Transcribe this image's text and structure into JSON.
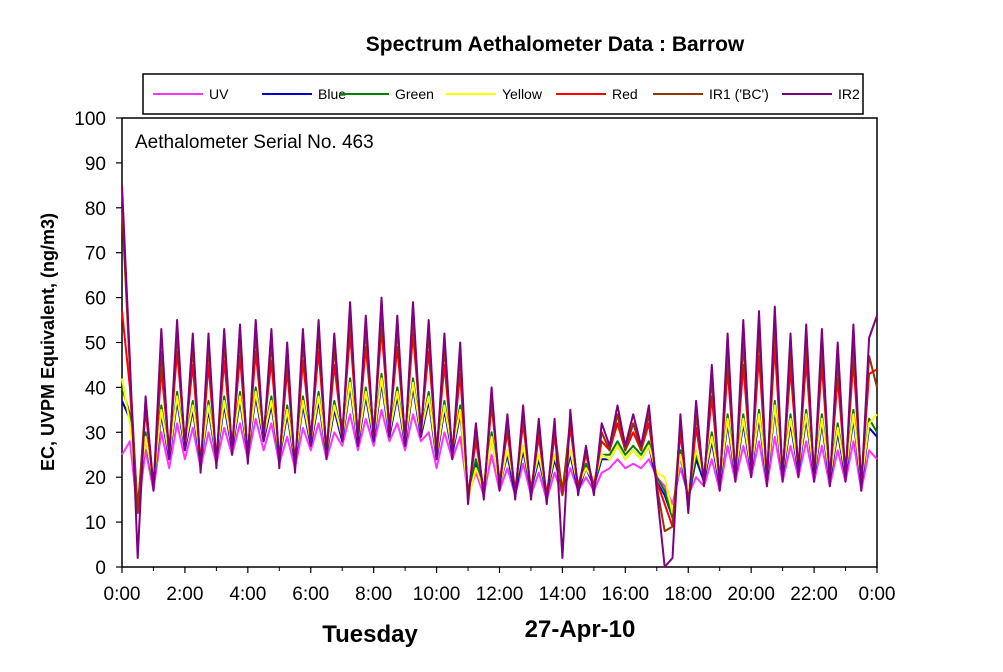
{
  "chart_data": {
    "type": "line",
    "title": "Spectrum Aethalometer Data  :  Barrow",
    "ylabel": "EC, UVPM Equivalent, (ng/m3)",
    "xlabel_left": "Tuesday",
    "xlabel_right": "27-Apr-10",
    "annotation": "Aethalometer  Serial No. 463",
    "ylim": [
      0,
      100
    ],
    "yticks": [
      "0",
      "10",
      "20",
      "30",
      "40",
      "50",
      "60",
      "70",
      "80",
      "90",
      "100"
    ],
    "xticks": [
      "0:00",
      "2:00",
      "4:00",
      "6:00",
      "8:00",
      "10:00",
      "12:00",
      "14:00",
      "16:00",
      "18:00",
      "20:00",
      "22:00",
      "0:00"
    ],
    "x_hours": [
      0,
      0.25,
      0.5,
      0.75,
      1,
      1.25,
      1.5,
      1.75,
      2,
      2.25,
      2.5,
      2.75,
      3,
      3.25,
      3.5,
      3.75,
      4,
      4.25,
      4.5,
      4.75,
      5,
      5.25,
      5.5,
      5.75,
      6,
      6.25,
      6.5,
      6.75,
      7,
      7.25,
      7.5,
      7.75,
      8,
      8.25,
      8.5,
      8.75,
      9,
      9.25,
      9.5,
      9.75,
      10,
      10.25,
      10.5,
      10.75,
      11,
      11.25,
      11.5,
      11.75,
      12,
      12.25,
      12.5,
      12.75,
      13,
      13.25,
      13.5,
      13.75,
      14,
      14.25,
      14.5,
      14.75,
      15,
      15.25,
      15.5,
      15.75,
      16,
      16.25,
      16.5,
      16.75,
      17,
      17.25,
      17.5,
      17.75,
      18,
      18.25,
      18.5,
      18.75,
      19,
      19.25,
      19.5,
      19.75,
      20,
      20.25,
      20.5,
      20.75,
      21,
      21.25,
      21.5,
      21.75,
      22,
      22.25,
      22.5,
      22.75,
      23,
      23.25,
      23.5,
      23.75,
      24
    ],
    "legend_position": "top-center",
    "grid": false,
    "series": [
      {
        "name": "UV",
        "color": "#ff33ff",
        "values": [
          25,
          28,
          12,
          26,
          17,
          30,
          22,
          32,
          24,
          31,
          22,
          30,
          23,
          31,
          25,
          32,
          24,
          33,
          26,
          32,
          23,
          29,
          22,
          31,
          26,
          32,
          24,
          30,
          27,
          34,
          26,
          33,
          27,
          35,
          28,
          32,
          26,
          34,
          28,
          30,
          22,
          30,
          24,
          29,
          16,
          21,
          16,
          25,
          17,
          22,
          16,
          23,
          16,
          21,
          15,
          21,
          16,
          22,
          17,
          20,
          17,
          21,
          22,
          24,
          22,
          23,
          22,
          24,
          20,
          18,
          14,
          22,
          16,
          20,
          18,
          24,
          17,
          27,
          19,
          27,
          20,
          28,
          18,
          29,
          19,
          27,
          20,
          28,
          19,
          27,
          18,
          26,
          19,
          28,
          17,
          26,
          24
        ]
      },
      {
        "name": "Blue",
        "color": "#0000cc",
        "values": [
          37,
          33,
          13,
          29,
          18,
          34,
          24,
          37,
          26,
          35,
          23,
          35,
          24,
          36,
          26,
          37,
          25,
          38,
          28,
          36,
          24,
          34,
          23,
          36,
          27,
          37,
          25,
          35,
          28,
          40,
          27,
          38,
          28,
          41,
          29,
          38,
          27,
          40,
          29,
          37,
          24,
          35,
          25,
          34,
          16,
          23,
          17,
          29,
          18,
          25,
          16,
          26,
          17,
          24,
          16,
          24,
          17,
          25,
          17,
          22,
          18,
          24,
          24,
          27,
          24,
          26,
          24,
          27,
          19,
          16,
          11,
          25,
          15,
          24,
          19,
          28,
          18,
          32,
          20,
          32,
          21,
          33,
          19,
          35,
          20,
          32,
          21,
          33,
          20,
          32,
          19,
          30,
          20,
          33,
          18,
          31,
          29
        ]
      },
      {
        "name": "Green",
        "color": "#008000",
        "values": [
          40,
          34,
          13,
          30,
          18,
          36,
          25,
          39,
          27,
          37,
          23,
          37,
          24,
          38,
          27,
          39,
          25,
          40,
          29,
          38,
          24,
          36,
          23,
          38,
          28,
          39,
          25,
          37,
          29,
          42,
          28,
          40,
          29,
          43,
          30,
          40,
          28,
          42,
          30,
          39,
          25,
          37,
          26,
          36,
          16,
          24,
          17,
          30,
          18,
          26,
          17,
          27,
          17,
          25,
          16,
          25,
          17,
          26,
          18,
          23,
          18,
          25,
          25,
          28,
          25,
          27,
          25,
          28,
          20,
          17,
          11,
          26,
          15,
          25,
          20,
          30,
          19,
          34,
          21,
          34,
          22,
          35,
          20,
          37,
          21,
          34,
          22,
          35,
          21,
          34,
          20,
          32,
          21,
          35,
          19,
          33,
          30
        ]
      },
      {
        "name": "Yellow",
        "color": "#ffff00",
        "values": [
          42,
          32,
          14,
          29,
          19,
          35,
          25,
          38,
          27,
          36,
          24,
          36,
          25,
          37,
          27,
          38,
          26,
          39,
          29,
          37,
          25,
          35,
          24,
          37,
          28,
          38,
          26,
          36,
          29,
          41,
          28,
          39,
          29,
          42,
          30,
          39,
          28,
          41,
          30,
          38,
          25,
          36,
          26,
          35,
          15,
          22,
          17,
          29,
          18,
          26,
          18,
          27,
          18,
          25,
          17,
          25,
          18,
          26,
          18,
          22,
          19,
          25,
          24,
          27,
          24,
          26,
          24,
          27,
          21,
          20,
          12,
          25,
          17,
          26,
          20,
          29,
          19,
          33,
          21,
          33,
          22,
          34,
          20,
          36,
          21,
          33,
          22,
          34,
          21,
          33,
          20,
          31,
          21,
          34,
          19,
          32,
          34
        ]
      },
      {
        "name": "Red",
        "color": "#ff0000",
        "values": [
          57,
          40,
          13,
          35,
          18,
          44,
          26,
          48,
          28,
          45,
          23,
          45,
          24,
          46,
          27,
          47,
          25,
          48,
          30,
          46,
          24,
          44,
          23,
          46,
          29,
          48,
          26,
          45,
          30,
          52,
          29,
          49,
          30,
          53,
          31,
          49,
          29,
          52,
          31,
          48,
          26,
          45,
          26,
          43,
          16,
          28,
          17,
          36,
          19,
          30,
          17,
          32,
          17,
          29,
          16,
          29,
          17,
          31,
          18,
          25,
          18,
          28,
          26,
          32,
          26,
          30,
          26,
          32,
          19,
          14,
          9,
          30,
          14,
          31,
          20,
          38,
          19,
          44,
          21,
          45,
          22,
          47,
          20,
          49,
          21,
          44,
          22,
          46,
          21,
          45,
          20,
          42,
          21,
          46,
          19,
          43,
          44
        ]
      },
      {
        "name": "IR1 ('BC')",
        "color": "#993300",
        "values": [
          80,
          44,
          12,
          37,
          18,
          48,
          25,
          52,
          27,
          49,
          22,
          49,
          23,
          50,
          26,
          51,
          24,
          52,
          29,
          50,
          23,
          47,
          22,
          50,
          28,
          52,
          25,
          49,
          29,
          56,
          28,
          53,
          29,
          57,
          30,
          53,
          28,
          56,
          30,
          52,
          25,
          49,
          25,
          47,
          15,
          30,
          16,
          38,
          18,
          32,
          16,
          34,
          16,
          31,
          15,
          31,
          16,
          33,
          17,
          26,
          17,
          30,
          26,
          34,
          26,
          32,
          26,
          34,
          18,
          8,
          9,
          32,
          13,
          34,
          19,
          42,
          18,
          48,
          20,
          50,
          21,
          52,
          19,
          54,
          20,
          48,
          21,
          50,
          20,
          49,
          19,
          46,
          20,
          50,
          18,
          47,
          40
        ]
      },
      {
        "name": "IR2",
        "color": "#800080",
        "values": [
          85,
          46,
          2,
          38,
          17,
          53,
          24,
          55,
          26,
          52,
          21,
          52,
          22,
          53,
          25,
          54,
          23,
          55,
          28,
          53,
          22,
          50,
          21,
          53,
          27,
          55,
          24,
          52,
          28,
          59,
          27,
          56,
          28,
          60,
          29,
          56,
          27,
          59,
          29,
          55,
          24,
          52,
          24,
          50,
          14,
          32,
          15,
          40,
          17,
          34,
          15,
          36,
          15,
          33,
          14,
          33,
          2,
          35,
          16,
          27,
          16,
          32,
          27,
          36,
          27,
          34,
          27,
          36,
          17,
          0,
          2,
          34,
          12,
          37,
          18,
          45,
          17,
          52,
          19,
          55,
          20,
          57,
          18,
          58,
          19,
          52,
          20,
          54,
          19,
          53,
          18,
          50,
          19,
          54,
          17,
          51,
          56
        ]
      }
    ]
  }
}
